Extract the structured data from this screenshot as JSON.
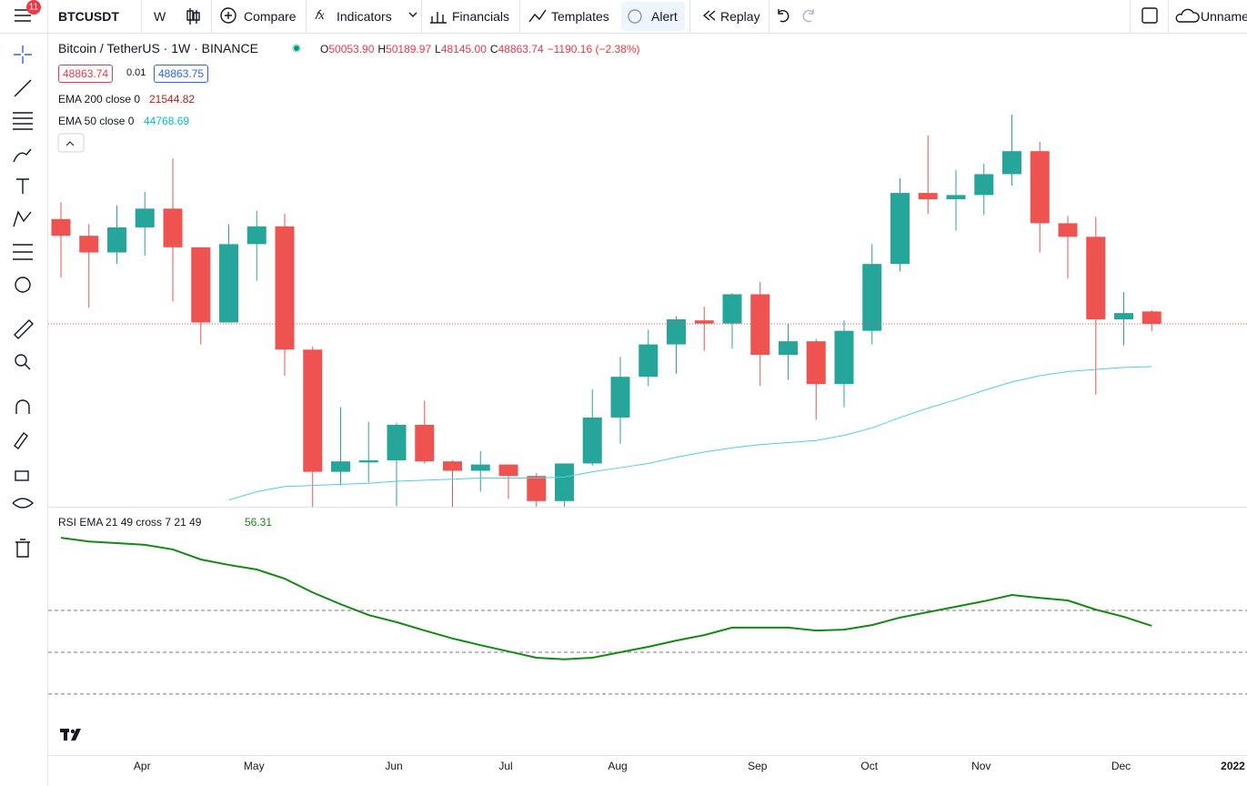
{
  "toolbar": {
    "badge": 11,
    "symbol": "BTCUSDT",
    "interval": "W",
    "items": [
      "Compare",
      "Indicators",
      "Financials",
      "Templates",
      "Alert",
      "Replay"
    ],
    "layout_name": "Unname"
  },
  "legend": {
    "symbol": "Bitcoin / TetherUS · 1W · BINANCE",
    "ohlc": [
      {
        "label": "O",
        "value": "50053.90"
      },
      {
        "label": "H",
        "value": "50189.97"
      },
      {
        "label": "L",
        "value": "48145.00"
      },
      {
        "label": "C",
        "value": "48863.74"
      }
    ],
    "change": "−1190.16 (−2.38%)",
    "spread": 0.01,
    "ask": 48863.75,
    "ema200": {
      "name": "EMA 200 close 0",
      "value": 21544.82
    }
  },
  "chart_data": [
    {
      "type": "candlestick",
      "categories": [
        null,
        null,
        null,
        "Apr",
        null,
        null,
        null,
        "May",
        null,
        null,
        null,
        null,
        "Jun",
        null,
        null,
        null,
        "Jul",
        null,
        null,
        null,
        "Aug",
        null,
        null,
        null,
        null,
        "Sep",
        null,
        null,
        null,
        "Oct",
        null,
        null,
        null,
        "Nov",
        null,
        null,
        null,
        null,
        "Dec",
        null,
        null,
        null,
        "2022"
      ],
      "open": [
        58900,
        57300,
        55700,
        58100,
        59900,
        56200,
        49000,
        56500,
        58200,
        46400,
        34700,
        35600,
        35800,
        39200,
        35700,
        34800,
        35400,
        34300,
        31900,
        35500,
        39900,
        43800,
        46900,
        49200,
        48900,
        51700,
        45900,
        47200,
        43100,
        48200,
        54600,
        61400,
        60800,
        61200,
        63200,
        65400,
        58500,
        57200,
        49300,
        50053.9,
        null,
        null,
        null
      ],
      "high": [
        60500,
        58400,
        60200,
        61500,
        64700,
        56200,
        58400,
        59700,
        59400,
        46700,
        40900,
        39500,
        39400,
        41500,
        35800,
        36700,
        35400,
        34600,
        35500,
        42600,
        45700,
        48300,
        49600,
        50500,
        51800,
        52900,
        48900,
        47400,
        49200,
        56500,
        62800,
        66900,
        63600,
        64200,
        68900,
        66300,
        59200,
        59100,
        51900,
        50189.97,
        null,
        null,
        null
      ],
      "low": [
        53300,
        50400,
        54600,
        55400,
        51000,
        46900,
        49000,
        53000,
        43900,
        30100,
        33400,
        33700,
        31400,
        35500,
        28800,
        32800,
        32100,
        29300,
        29500,
        35300,
        37400,
        42900,
        44100,
        46300,
        46500,
        42900,
        43500,
        39700,
        40900,
        46900,
        53900,
        59400,
        57800,
        59300,
        62100,
        55700,
        53200,
        42100,
        46800,
        48145,
        null,
        null,
        null
      ],
      "close": [
        57300,
        55700,
        58100,
        59900,
        56200,
        49000,
        56500,
        58200,
        46400,
        34700,
        35700,
        35800,
        39200,
        35700,
        34800,
        35400,
        34300,
        31900,
        35500,
        39900,
        43800,
        46900,
        49300,
        48900,
        51700,
        45900,
        47200,
        43100,
        48200,
        54600,
        61400,
        60800,
        61200,
        63200,
        65400,
        58500,
        57200,
        49300,
        49900,
        48863.74,
        null,
        null,
        null
      ],
      "up_color": "#26a69a",
      "down_color": "#ef5350",
      "ylim": [
        31360,
        76650
      ],
      "series": [
        {
          "name": "EMA 50 close 0",
          "color": "#4dd0e1",
          "values": [
            null,
            null,
            null,
            null,
            null,
            null,
            32000,
            32800,
            33300,
            33400,
            33500,
            33600,
            33800,
            33900,
            34000,
            34100,
            34100,
            34100,
            34200,
            34700,
            35100,
            35500,
            36100,
            36600,
            37000,
            37300,
            37500,
            37700,
            38200,
            38900,
            39900,
            40800,
            41600,
            42500,
            43300,
            43900,
            44300,
            44500,
            44700,
            44768.69,
            null,
            null,
            null
          ]
        }
      ]
    },
    {
      "type": "line",
      "name": "RSI EMA 21 49 cross 7 21 49",
      "color": "#138a13",
      "values": [
        77.4,
        76.5,
        76.1,
        75.7,
        74.6,
        72.2,
        70.9,
        69.8,
        67.6,
        64.3,
        61.5,
        58.9,
        57.2,
        55.2,
        53.3,
        51.7,
        50.2,
        48.7,
        48.3,
        48.7,
        50.0,
        51.3,
        52.8,
        54.1,
        55.9,
        55.9,
        55.9,
        55.2,
        55.4,
        56.5,
        58.3,
        59.6,
        60.9,
        62.2,
        63.7,
        63.0,
        62.4,
        60.2,
        58.5,
        56.31,
        null,
        null,
        null
      ],
      "ylim": [
        25.4,
        84.6
      ],
      "levels": [
        60,
        50,
        40
      ]
    }
  ]
}
